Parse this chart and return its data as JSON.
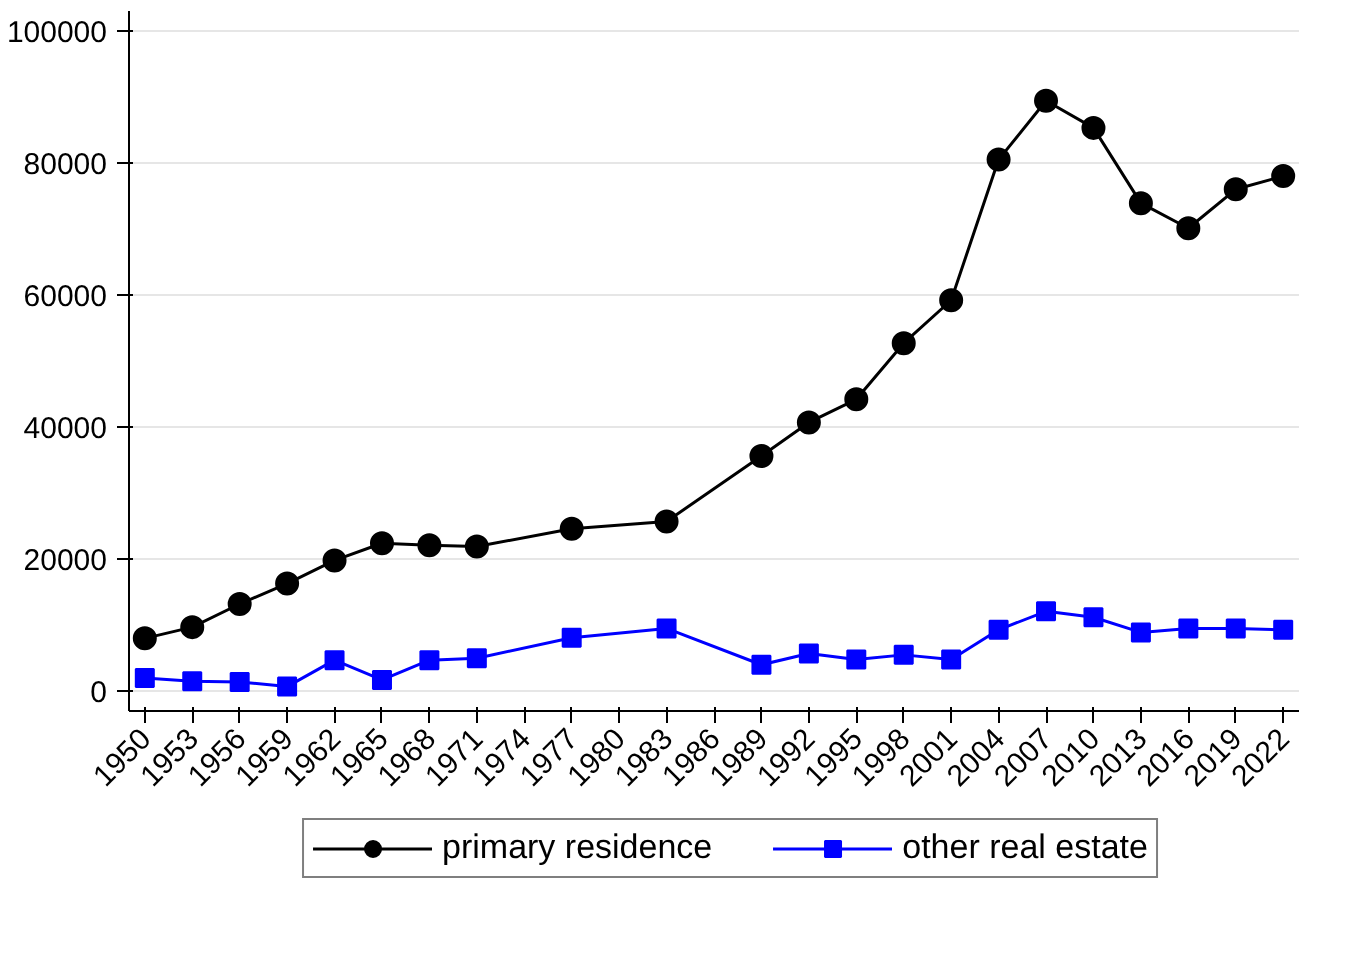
{
  "chart_data": {
    "type": "line",
    "x": [
      1950,
      1953,
      1956,
      1959,
      1962,
      1965,
      1968,
      1971,
      1977,
      1983,
      1989,
      1992,
      1995,
      1998,
      2001,
      2004,
      2007,
      2010,
      2013,
      2016,
      2019,
      2022
    ],
    "series": [
      {
        "name": "primary residence",
        "color": "#000000",
        "marker": "circle",
        "values": [
          8000,
          9700,
          13200,
          16300,
          19800,
          22400,
          22100,
          21900,
          24600,
          25700,
          35600,
          40700,
          44200,
          52700,
          59200,
          80500,
          89400,
          85300,
          73900,
          70100,
          76000,
          78000
        ]
      },
      {
        "name": "other real estate",
        "color": "#0000ff",
        "marker": "square",
        "values": [
          2000,
          1500,
          1400,
          700,
          4700,
          1700,
          4700,
          5000,
          8100,
          9500,
          4000,
          5700,
          4800,
          5500,
          4800,
          9300,
          12100,
          11200,
          8900,
          9500,
          9500,
          9300
        ]
      }
    ],
    "xlim": [
      1949,
      2023
    ],
    "xticks": [
      1950,
      1953,
      1956,
      1959,
      1962,
      1965,
      1968,
      1971,
      1974,
      1977,
      1980,
      1983,
      1986,
      1989,
      1992,
      1995,
      1998,
      2001,
      2004,
      2007,
      2010,
      2013,
      2016,
      2019,
      2022
    ],
    "ylim": [
      -3000,
      103000
    ],
    "yticks": [
      0,
      20000,
      40000,
      60000,
      80000,
      100000
    ],
    "grid": "y",
    "legend": "bottom",
    "line_style": "solid"
  }
}
